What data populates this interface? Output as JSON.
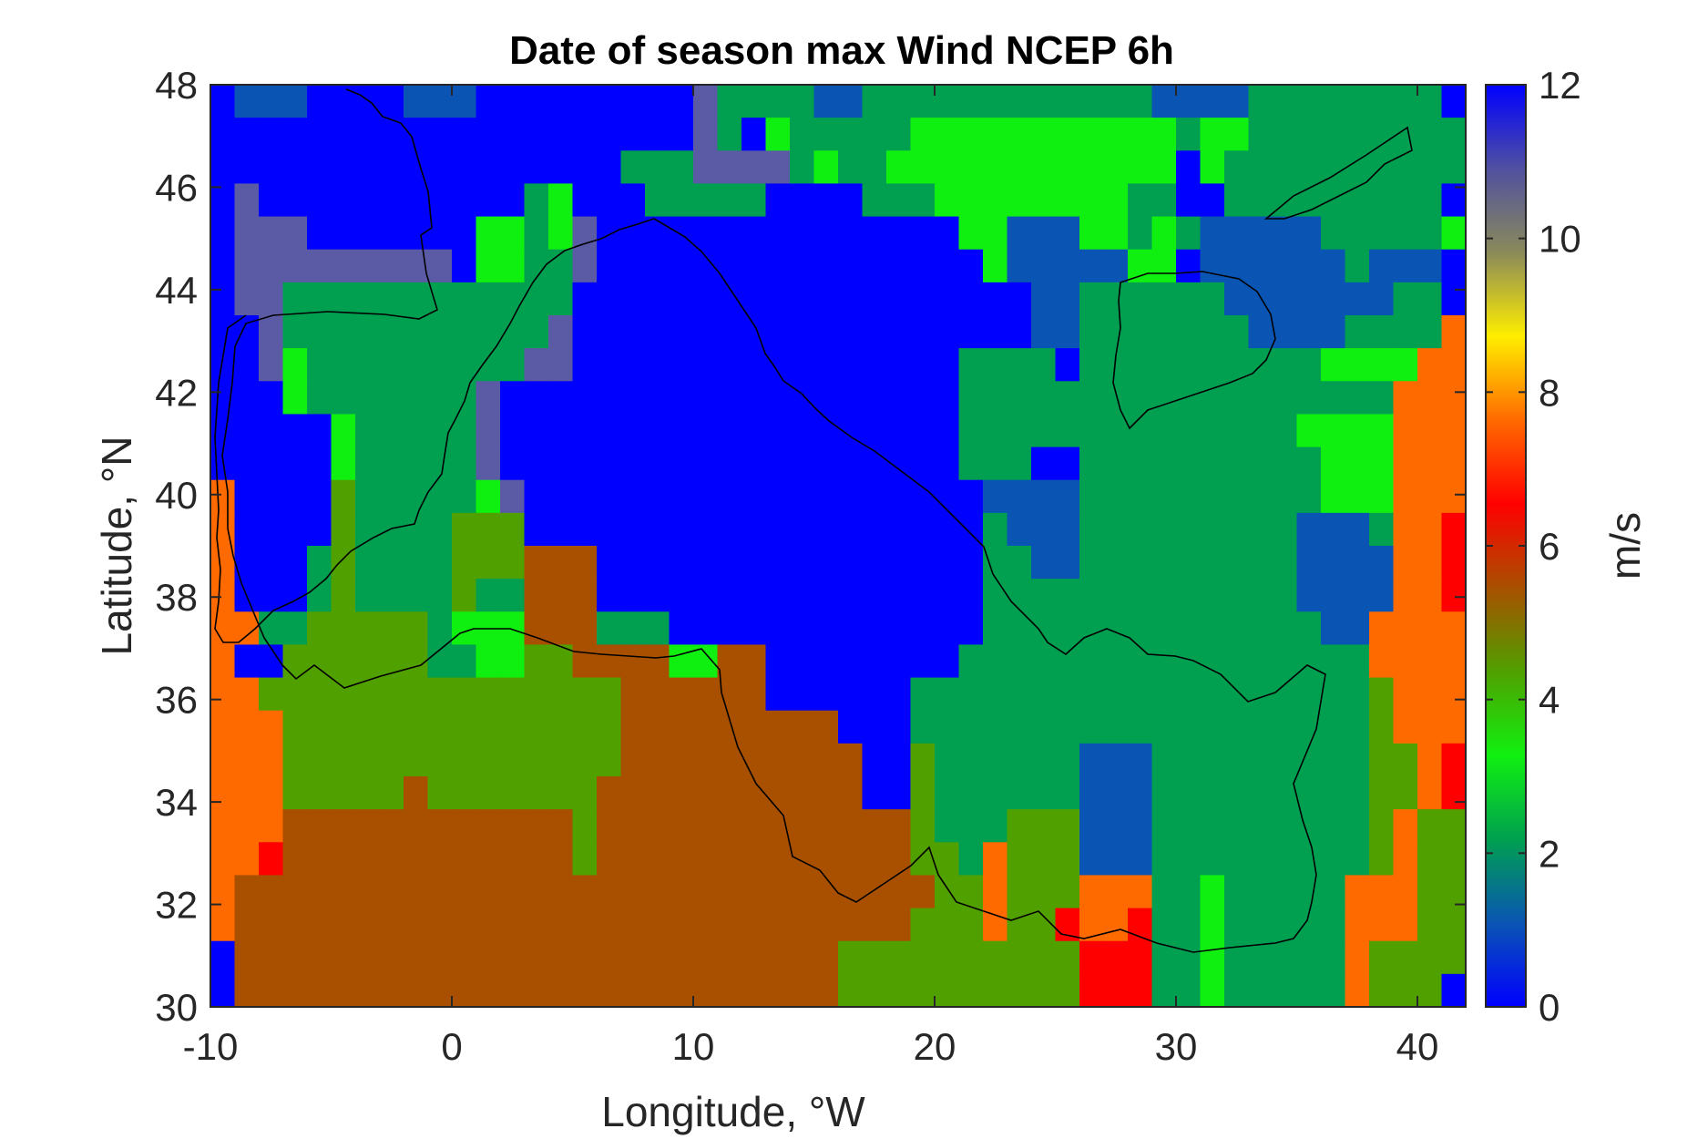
{
  "chart_data": {
    "type": "heatmap",
    "title": "Date of season max Wind NCEP 6h",
    "xlabel": "Longitude, °W",
    "ylabel": "Latitude, °N",
    "colorbar_label": "m/s",
    "xlim": [
      -10,
      42
    ],
    "ylim": [
      30,
      48
    ],
    "xticks": [
      -10,
      0,
      10,
      20,
      30,
      40
    ],
    "yticks": [
      30,
      32,
      34,
      36,
      38,
      40,
      42,
      44,
      46,
      48
    ],
    "clim": [
      0,
      12
    ],
    "cticks": [
      0,
      2,
      4,
      6,
      8,
      10,
      12
    ],
    "colormap": [
      "#0000ff",
      "#0a55b4",
      "#00a050",
      "#10f010",
      "#50a000",
      "#a85000",
      "#ff0000",
      "#ff6a00",
      "#ffee00",
      "#8a8a5a",
      "#5050a0",
      "#0000ff"
    ],
    "grid_start_lon": -10,
    "grid_start_lat": 30,
    "cell_size_deg": 1,
    "legend": {
      "cells": {
        "A": "#ff6a00",
        "R": "#ff0000",
        "B": "#0000ff",
        "M": "#0a55b4",
        "P": "#5a5aa5",
        "G": "#00a050",
        "L": "#10f010",
        "O": "#50a000",
        "N": "#a85000"
      }
    },
    "grid_rows_north_to_south": [
      "BMMMBBBBMMMBBBBBBBBBPGGGGMMGGGGGGGGGGGGMMMMGGGGGGGGB",
      "BBBBBBBBBBBBBBBBBBBBPGBLGGGGGLLLLLLLLLLLGLLGGGGGGGGG",
      "BBBBBBBBBBBBBBBBBGGGPPPPGLGGLLLLLLLLLLLLBLGGGGGGGGGG",
      "BPBBBBBBBBBBBGLBBBGGGGGBBBBGGGLLLLLLLLGGBBGGGGGGGGGB",
      "BPPPBBBBBBBLLGLPBBBBBBBBBBBBBBBLLMMMLLGLGMMMMMGGGGGL",
      "BPPPPPPPPPBLLGGPBBBBBBBBBBBBBBBBLMMMMMLLBMMMMMMGMMMB",
      "BPPGGGGGGGGGGGGBBBBBBBBBBBBBBBBBBBMMGGGGGGMMMMMMMGGB",
      "BBPGGGGGGGGGGGPBBBBBBBBBBBBBBBBBBBMMGGGGGGGMMMMGGGGA",
      "BBPLGGGGGGGGGPPBBBBBBBBBBBBBBBBGGGGBGGGGGGGGGGLLLLAA",
      "BBBLGGGGGGGPBBBBBBBBBBBBBBBBBBBGGGGGGGGGGGGGGGGGGAAA",
      "BBBBBLGGGGGPBBBBBBBBBBBBBBBBBBBGGGGGGGGGGGGGGLLLLAAA",
      "BBBBBLGGGGGPBBBBBBBBBBBBBBBBBBBGGGBBGGGGGGGGGGLLLAAA",
      "ABBBBOGGGGGLPBBBBBBBBBBBBBBBBBBBMMMMGGGGGGGGGGLLLAAA",
      "ABBBBOGGGGOOOBBBBBBBBBBBBBBBBBBBGMMMGGGGGGGGGMMMGAAR",
      "ABBBGOGGGGOOONNNBBBBBBBBBBBBBBBBGGMMGGGGGGGGGMMMMAAR",
      "ABBBGOGGGGOGGNNNBBBBBBBBBBBBBBBBGGGGGGGGGGGGGMMMMAAR",
      "AAGGOOOOOGLLLNNNGGGBBBBBBBBBBBBBGGGGGGGGGGGGGGMMAAAA",
      "ABBOOOOOOGGLLOONNNNLLNNBBBBBBBBGGGGGGGGGGGGGGGGGAAAA",
      "AAOOOOOOOOOOOOOOONNNNNNBBBBBBGGGGGGGGGGGGGGGGGGGOAAA",
      "AAAOOOOOOOOOOOOOONNNNNNNNNBBBGGGGGGGGGGGGGGGGGGGOAAA",
      "AAAOOOOOOOOOOOOOONNNNNNNNNNBBOGGGGGGMMMGGGGGGGGGOOAR",
      "AAAOOOOONOOOOOOONNNNNNNNNNNBBOGGGGGGMMMGGGGGGGGGOOAR",
      "AAANNNNNNNNNNNNONNNNNNNNNNNNNOGGGOOOMMMGGGGGGGGGOAOO",
      "AARNNNNNNNNNNNNONNNNNNNNNNNNNOOGAOOOMMMGGGGGGGGGOAOO",
      "ANNNNNNNNNNNNNNNNNNNNNNNNNNNNNOOAOOOAAAGGLGGGGGAAAOO",
      "ANNNNNNNNNNNNNNNNNNNNNNNNNNNNOOOAOORAARGGLGGGGGAAAOO",
      "BNNNNNNNNNNNNNNNNNNNNNNNNNOOOOOOOOOORRRGGLGGGGGAOOOO",
      "BNNNNNNNNNNNNNNNNNNNNNNNNNOOOOOOOOOORRRGGLGGGGGAOOOB"
    ]
  }
}
